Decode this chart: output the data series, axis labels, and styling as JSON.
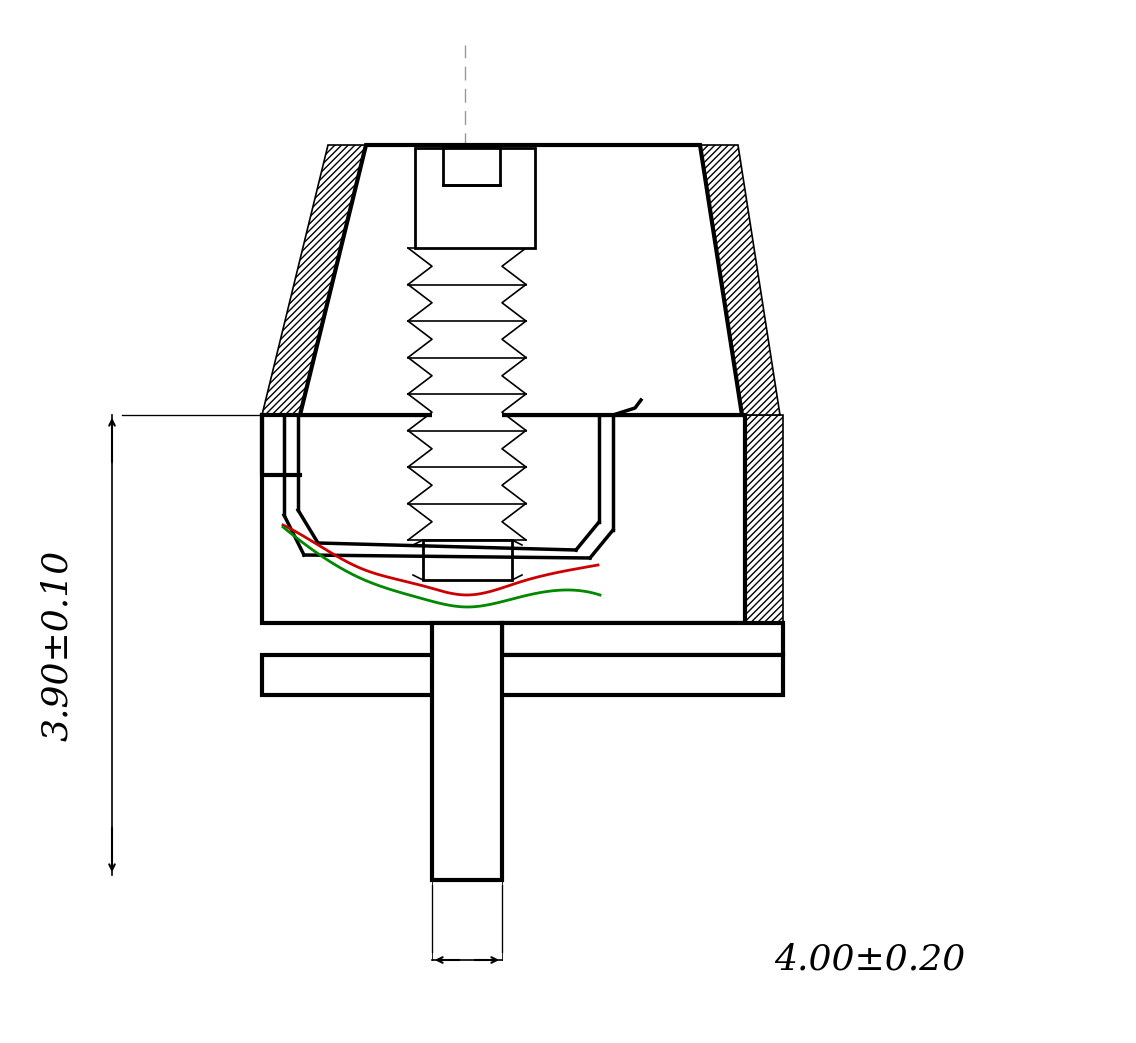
{
  "background_color": "#ffffff",
  "line_color": "#000000",
  "red_wire_color": "#cc0000",
  "green_wire_color": "#008800",
  "center_dash_color": "#999999",
  "dim_label_vertical": "3.90±0.10",
  "dim_label_horizontal": "4.00±0.20",
  "dim_fontsize": 26,
  "figsize": [
    11.36,
    10.43
  ],
  "dpi": 100
}
